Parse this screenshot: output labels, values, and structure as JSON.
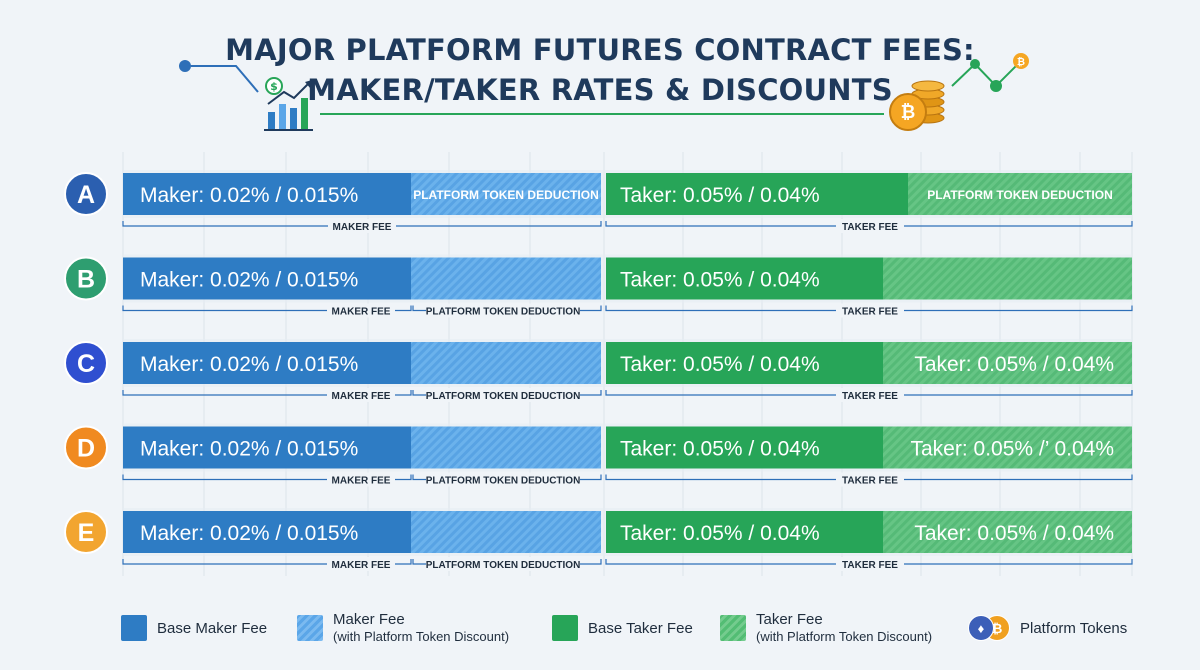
{
  "title_line1": "MAJOR PLATFORM FUTURES CONTRACT FEES:",
  "title_line2": "MAKER/TAKER RATES & DISCOUNTS",
  "colors": {
    "base_maker": "#2e7cc4",
    "discount_maker": "#6bb2ec",
    "base_taker": "#27a558",
    "discount_taker": "#63c582",
    "row_A": "#2b5fb0",
    "row_B": "#2e9e70",
    "row_C": "#2f4fd0",
    "row_D": "#f08a20",
    "row_E": "#f2a530"
  },
  "chart_data": {
    "type": "bar",
    "orientation": "horizontal",
    "categories": [
      "A",
      "B",
      "C",
      "D",
      "E"
    ],
    "rows": [
      {
        "label": "A",
        "maker_text": "Maker: 0.02% / 0.015%",
        "maker_discount_text": "PLATFORM TOKEN DEDUCTION",
        "taker_text": "Taker: 0.05% / 0.04%",
        "taker_discount_text": "PLATFORM TOKEN DEDUCTION",
        "maker_caption": "MAKER FEE",
        "maker_discount_caption": "",
        "taker_caption": "TAKER FEE"
      },
      {
        "label": "B",
        "maker_text": "Maker: 0.02% / 0.015%",
        "maker_discount_text": "",
        "taker_text": "Taker: 0.05% / 0.04%",
        "taker_discount_text": "",
        "maker_caption": "MAKER FEE",
        "maker_discount_caption": "PLATFORM TOKEN DEDUCTION",
        "taker_caption": "TAKER FEE"
      },
      {
        "label": "C",
        "maker_text": "Maker: 0.02% / 0.015%",
        "maker_discount_text": "",
        "taker_text": "Taker: 0.05% / 0.04%",
        "taker_discount_text": "Taker: 0.05%  / 0.04%",
        "maker_caption": "MAKER FEE",
        "maker_discount_caption": "PLATFORM TOKEN DEDUCTION",
        "taker_caption": "TAKER FEE"
      },
      {
        "label": "D",
        "maker_text": "Maker: 0.02% / 0.015%",
        "maker_discount_text": "",
        "taker_text": "Taker: 0.05% / 0.04%",
        "taker_discount_text": "Taker: 0.05% /’ 0.04%",
        "maker_caption": "MAKER FEE",
        "maker_discount_caption": "PLATFORM TOKEN DEDUCTION",
        "taker_caption": "TAKER FEE"
      },
      {
        "label": "E",
        "maker_text": "Maker: 0.02% / 0.015%",
        "maker_discount_text": "",
        "taker_text": "Taker: 0.05% / 0.04%",
        "taker_discount_text": "Taker: 0.05% / 0.04%",
        "maker_caption": "MAKER FEE",
        "maker_discount_caption": "PLATFORM TOKEN DEDUCTION",
        "taker_caption": "TAKER FEE"
      }
    ],
    "series": [
      {
        "name": "Base Maker Fee",
        "values": [
          0.02,
          0.02,
          0.02,
          0.02,
          0.02
        ]
      },
      {
        "name": "Maker Fee (with Platform Token Discount)",
        "values": [
          0.015,
          0.015,
          0.015,
          0.015,
          0.015
        ]
      },
      {
        "name": "Base Taker Fee",
        "values": [
          0.05,
          0.05,
          0.05,
          0.05,
          0.05
        ]
      },
      {
        "name": "Taker Fee (with Platform Token Discount)",
        "values": [
          0.04,
          0.04,
          0.04,
          0.04,
          0.04
        ]
      }
    ],
    "grid": true,
    "legend_position": "bottom"
  },
  "legend": {
    "base_maker": "Base Maker Fee",
    "discount_maker_line1": "Maker Fee",
    "discount_maker_line2": "(with Platform Token Discount)",
    "base_taker": "Base Taker Fee",
    "discount_taker_line1": "Taker Fee",
    "discount_taker_line2": "(with Platform Token Discount)",
    "platform_tokens": "Platform Tokens"
  },
  "icons": [
    "bar-chart-growth-icon",
    "dollar-coin-icon",
    "bitcoin-coin-stack-icon",
    "ethereum-icon",
    "bitcoin-icon"
  ]
}
